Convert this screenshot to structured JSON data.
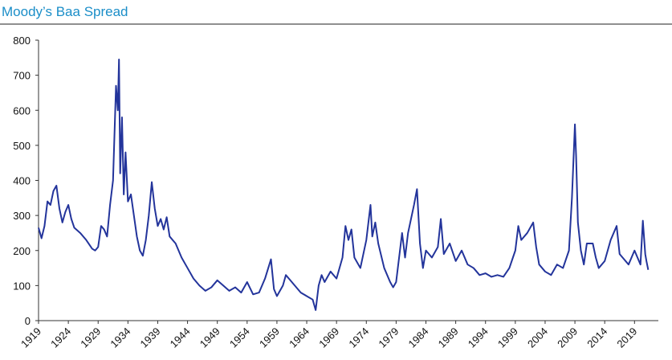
{
  "chart_data": {
    "type": "line",
    "title": "Moody’s Baa Spread",
    "color": "#23349b",
    "x": [
      1919,
      1919.5,
      1920,
      1920.5,
      1921,
      1921.5,
      1922,
      1922.5,
      1923,
      1923.5,
      1924,
      1924.5,
      1925,
      1926,
      1927,
      1928,
      1928.5,
      1929,
      1929.5,
      1930,
      1930.5,
      1931,
      1931.5,
      1932,
      1932.3,
      1932.5,
      1932.7,
      1933,
      1933.3,
      1933.6,
      1934,
      1934.5,
      1935,
      1935.5,
      1936,
      1936.5,
      1937,
      1937.5,
      1938,
      1938.5,
      1939,
      1939.5,
      1940,
      1940.5,
      1941,
      1942,
      1943,
      1944,
      1945,
      1946,
      1947,
      1948,
      1949,
      1950,
      1951,
      1952,
      1953,
      1954,
      1955,
      1956,
      1957,
      1958,
      1958.5,
      1959,
      1960,
      1960.5,
      1961,
      1962,
      1963,
      1964,
      1965,
      1965.5,
      1966,
      1966.5,
      1967,
      1968,
      1969,
      1970,
      1970.5,
      1971,
      1971.5,
      1972,
      1973,
      1974,
      1974.7,
      1975,
      1975.5,
      1976,
      1977,
      1978,
      1978.5,
      1979,
      1980,
      1980.5,
      1981,
      1982,
      1982.5,
      1983,
      1983.5,
      1984,
      1985,
      1986,
      1986.5,
      1987,
      1988,
      1989,
      1990,
      1991,
      1992,
      1993,
      1994,
      1995,
      1996,
      1997,
      1998,
      1999,
      1999.5,
      2000,
      2001,
      2002,
      2002.5,
      2003,
      2004,
      2005,
      2006,
      2007,
      2008,
      2008.5,
      2009,
      2009.2,
      2009.5,
      2010,
      2010.5,
      2011,
      2012,
      2012.5,
      2013,
      2014,
      2015,
      2016,
      2016.5,
      2017,
      2018,
      2019,
      2019.5,
      2020,
      2020.4,
      2020.8,
      2021,
      2021.3
    ],
    "values": [
      265,
      235,
      270,
      340,
      330,
      370,
      385,
      320,
      280,
      310,
      330,
      290,
      265,
      250,
      230,
      205,
      200,
      210,
      270,
      260,
      240,
      330,
      400,
      670,
      600,
      745,
      420,
      580,
      360,
      480,
      340,
      360,
      300,
      240,
      200,
      185,
      230,
      300,
      395,
      320,
      270,
      290,
      260,
      295,
      240,
      220,
      180,
      150,
      120,
      100,
      85,
      95,
      115,
      100,
      85,
      95,
      80,
      110,
      75,
      80,
      120,
      175,
      90,
      70,
      100,
      130,
      120,
      100,
      80,
      70,
      60,
      30,
      100,
      130,
      110,
      140,
      120,
      180,
      270,
      230,
      260,
      180,
      150,
      230,
      330,
      240,
      280,
      220,
      150,
      110,
      95,
      110,
      250,
      180,
      250,
      330,
      375,
      220,
      150,
      200,
      180,
      210,
      290,
      190,
      220,
      170,
      200,
      160,
      150,
      130,
      135,
      125,
      130,
      125,
      150,
      200,
      270,
      230,
      250,
      280,
      210,
      160,
      140,
      130,
      160,
      150,
      200,
      350,
      560,
      470,
      280,
      200,
      160,
      220,
      220,
      180,
      150,
      170,
      230,
      270,
      190,
      180,
      160,
      200,
      180,
      160,
      285,
      190,
      170,
      145
    ],
    "xlim": [
      1919,
      2023
    ],
    "ylim": [
      0,
      800
    ],
    "xticks": [
      1919,
      1924,
      1929,
      1934,
      1939,
      1944,
      1949,
      1954,
      1959,
      1964,
      1969,
      1974,
      1979,
      1984,
      1989,
      1994,
      1999,
      2004,
      2009,
      2014,
      2019
    ],
    "yticks": [
      0,
      100,
      200,
      300,
      400,
      500,
      600,
      700,
      800
    ]
  }
}
